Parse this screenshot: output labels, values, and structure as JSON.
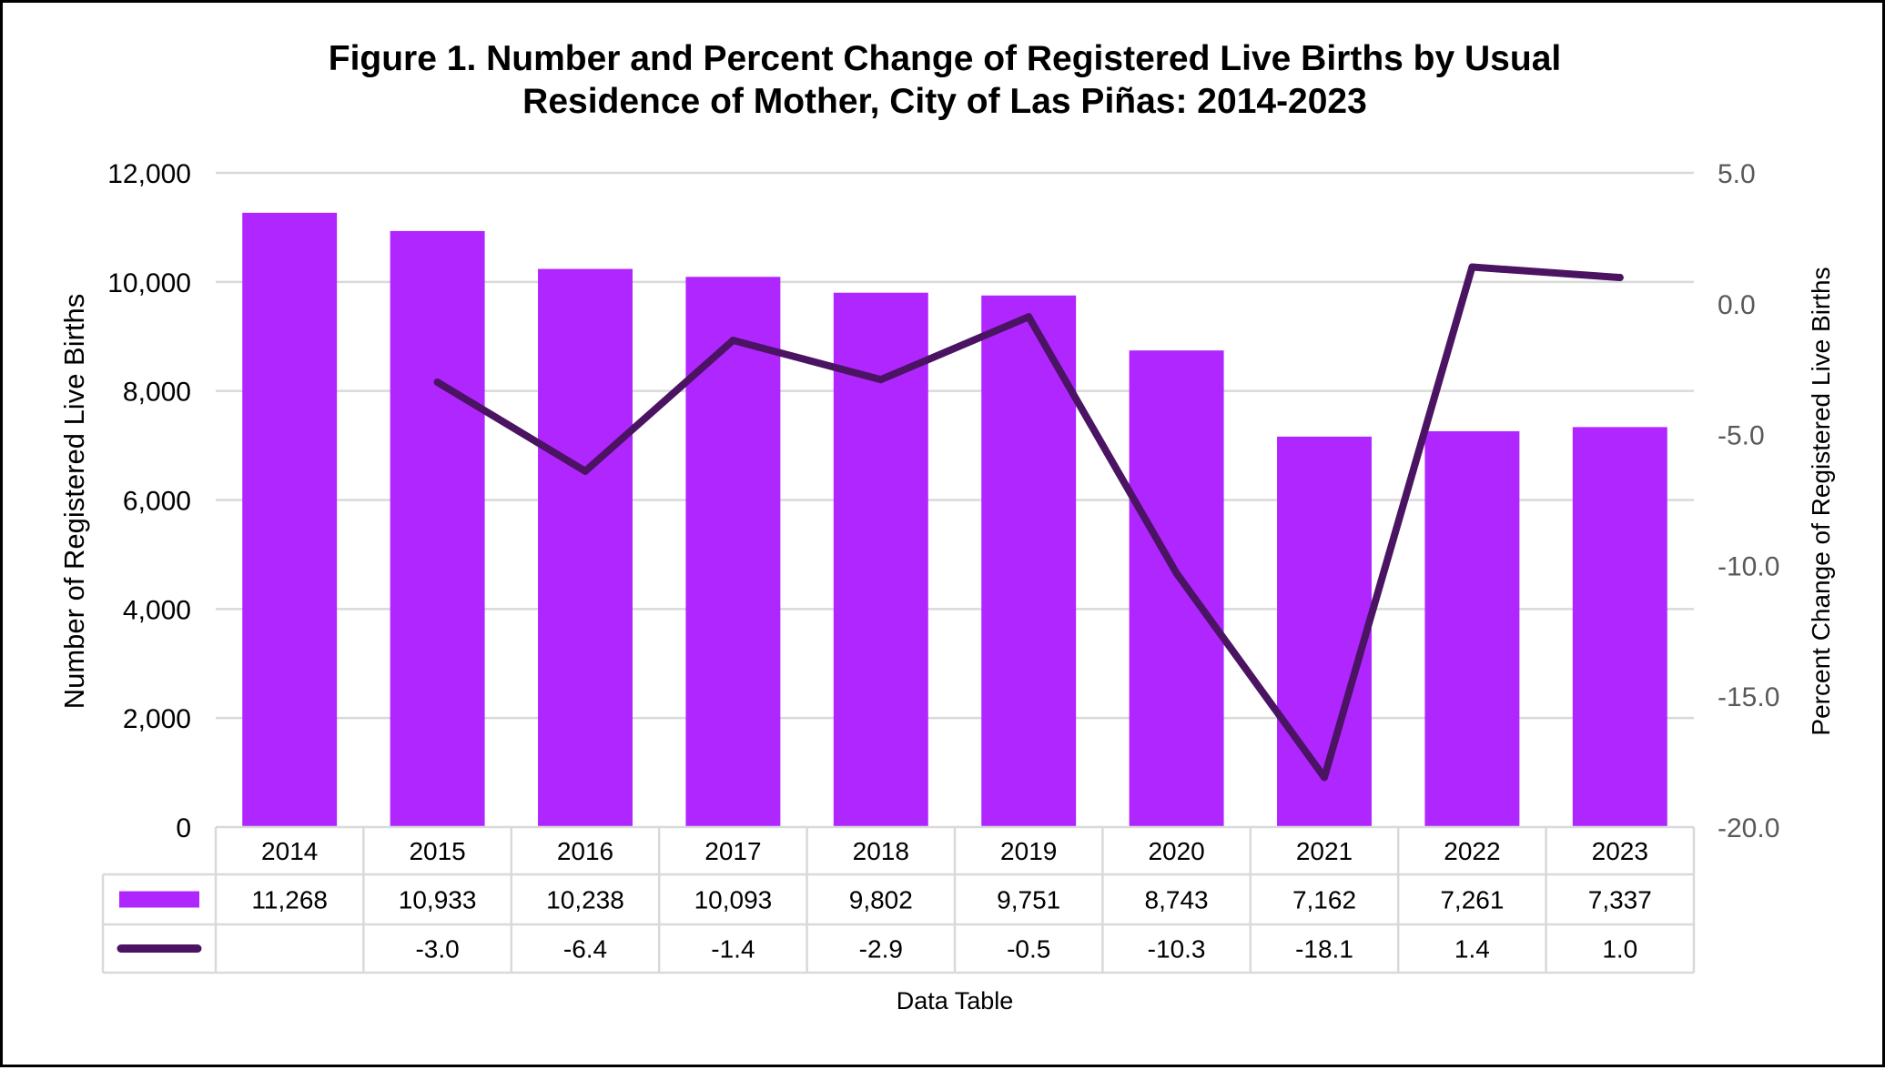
{
  "chart_data": {
    "type": "bar",
    "title_line1": "Figure 1. Number and Percent Change of Registered Live Births by Usual",
    "title_line2": "Residence of Mother, City of Las Piñas: 2014-2023",
    "categories": [
      "2014",
      "2015",
      "2016",
      "2017",
      "2018",
      "2019",
      "2020",
      "2021",
      "2022",
      "2023"
    ],
    "bar_series": {
      "values": [
        11268,
        10933,
        10238,
        10093,
        9802,
        9751,
        8743,
        7162,
        7261,
        7337
      ],
      "labels": [
        "11,268",
        "10,933",
        "10,238",
        "10,093",
        "9,802",
        "9,751",
        "8,743",
        "7,162",
        "7,261",
        "7,337"
      ],
      "color": "#B026FF"
    },
    "line_series": {
      "values": [
        null,
        -3.0,
        -6.4,
        -1.4,
        -2.9,
        -0.5,
        -10.3,
        -18.1,
        1.4,
        1.0
      ],
      "labels": [
        "",
        "-3.0",
        "-6.4",
        "-1.4",
        "-2.9",
        "-0.5",
        "-10.3",
        "-18.1",
        "1.4",
        "1.0"
      ],
      "color": "#4B1463"
    },
    "ylabel": "Number of Registered Live Births",
    "ylabel_right": "Percent Change of Registered Live Births",
    "ylim": [
      0,
      12000
    ],
    "ylim_right": [
      -20,
      5
    ],
    "y_ticks": [
      "0",
      "2,000",
      "4,000",
      "6,000",
      "8,000",
      "10,000",
      "12,000"
    ],
    "y_ticks_right": [
      "-20.0",
      "-15.0",
      "-10.0",
      "-5.0",
      "0.0",
      "5.0"
    ],
    "table_caption": "Data Table",
    "grid": true
  }
}
